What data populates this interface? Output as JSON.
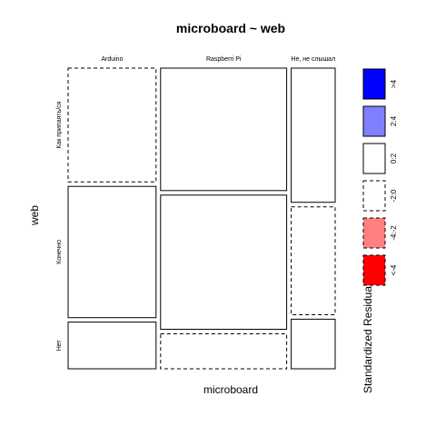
{
  "chart_data": {
    "type": "mosaic",
    "title": "microboard ~ web",
    "xlabel": "microboard",
    "ylabel": "web",
    "x_categories": [
      "Arduino",
      "Raspberri Pi",
      "Не, не слышал"
    ],
    "y_categories": [
      "Как припаять/ся",
      "Конечно",
      "Нет"
    ],
    "cells": [
      {
        "x": "Arduino",
        "y": "Как припаять/ся",
        "proportion": 0.39,
        "residual_class": "-2:0"
      },
      {
        "x": "Arduino",
        "y": "Конечно",
        "proportion": 0.45,
        "residual_class": "0:2"
      },
      {
        "x": "Arduino",
        "y": "Нет",
        "proportion": 0.16,
        "residual_class": "0:2"
      },
      {
        "x": "Raspberri Pi",
        "y": "Как припаять/ся",
        "proportion": 0.42,
        "residual_class": "0:2"
      },
      {
        "x": "Raspberri Pi",
        "y": "Конечно",
        "proportion": 0.46,
        "residual_class": "0:2"
      },
      {
        "x": "Raspberri Pi",
        "y": "Нет",
        "proportion": 0.12,
        "residual_class": "-2:0"
      },
      {
        "x": "Не, не слышал",
        "y": "Как припаять/ся",
        "proportion": 0.46,
        "residual_class": "0:2"
      },
      {
        "x": "Не, не слышал",
        "y": "Конечно",
        "proportion": 0.37,
        "residual_class": "-2:0"
      },
      {
        "x": "Не, не слышал",
        "y": "Нет",
        "proportion": 0.17,
        "residual_class": "0:2"
      }
    ],
    "column_proportions": [
      0.3,
      0.43,
      0.15
    ],
    "legend": {
      "title": "Standardized Residuals:",
      "entries": [
        {
          "label": ">4",
          "color": "#0000ff",
          "style": "solid"
        },
        {
          "label": "2:4",
          "color": "#8080ff",
          "style": "solid"
        },
        {
          "label": "0:2",
          "color": "#ffffff",
          "style": "solid"
        },
        {
          "label": "-2:0",
          "color": "#ffffff",
          "style": "dashed"
        },
        {
          "label": "-4:-2",
          "color": "#ff8080",
          "style": "dashed"
        },
        {
          "label": "<-4",
          "color": "#ff0000",
          "style": "dashed"
        }
      ]
    }
  }
}
